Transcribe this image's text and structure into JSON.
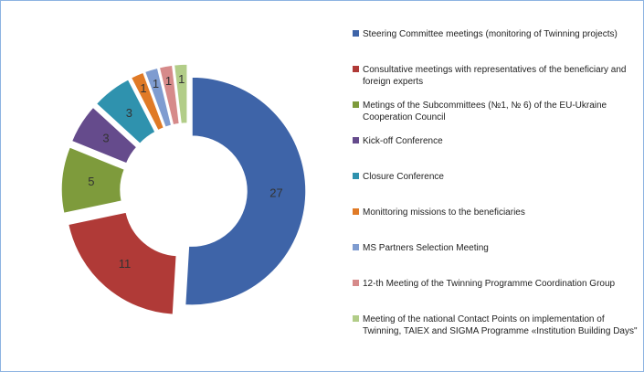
{
  "chart_data": {
    "type": "donut",
    "categories": [
      "Steering Committee meetings (monitoring of Twinning projects)",
      "Consultative meetings with representatives of the beneficiary and foreign experts",
      "Metings of the Subcommittees  (№1, № 6)  of the EU-Ukraine Cooperation Council",
      "Kick-off Conference",
      "Closure Conference",
      "Monittoring missions to the beneficiaries",
      "MS Partners Selection Meeting",
      " 12-th Meeting of the Twinning Programme Coordination Group",
      "Meeting of the national Contact Points on implementation of Twinning, TAIEX and SIGMA Programme «Institution Building Days\""
    ],
    "values": [
      27,
      11,
      5,
      3,
      3,
      1,
      1,
      1,
      1
    ],
    "colors": [
      "#3e64a8",
      "#b03a37",
      "#7e9b3c",
      "#654b8c",
      "#2f92ae",
      "#e07a26",
      "#7f9cd0",
      "#d68a8a",
      "#b2cd88"
    ],
    "legend": "right"
  }
}
